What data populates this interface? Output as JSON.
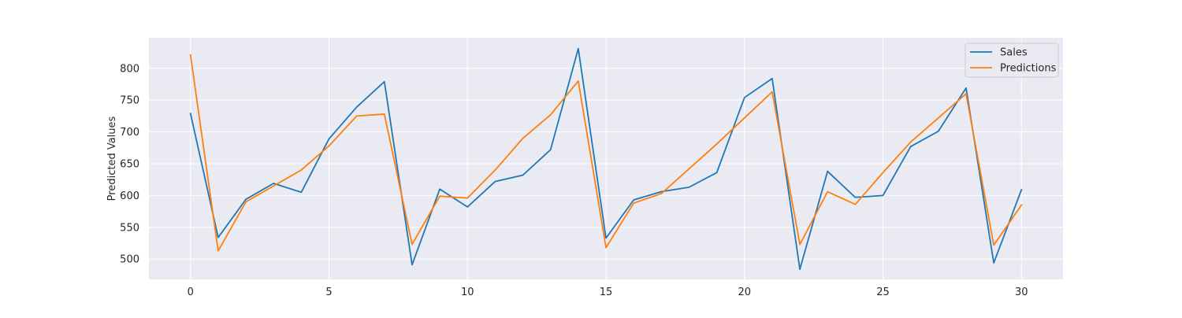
{
  "chart_data": {
    "type": "line",
    "title": "",
    "xlabel": "",
    "ylabel": "Predicted Values",
    "x": [
      0,
      1,
      2,
      3,
      4,
      5,
      6,
      7,
      8,
      9,
      10,
      11,
      12,
      13,
      14,
      15,
      16,
      17,
      18,
      19,
      20,
      21,
      22,
      23,
      24,
      25,
      26,
      27,
      28,
      29,
      30
    ],
    "series": [
      {
        "name": "Sales",
        "color": "#1f77b4",
        "values": [
          729,
          534,
          594,
          619,
          605,
          689,
          739,
          779,
          491,
          610,
          582,
          622,
          632,
          672,
          831,
          533,
          593,
          606,
          613,
          636,
          754,
          784,
          484,
          638,
          597,
          600,
          677,
          701,
          769,
          494,
          609
        ]
      },
      {
        "name": "Predictions",
        "color": "#ff7f0e",
        "values": [
          821,
          513,
          590,
          615,
          640,
          678,
          725,
          728,
          523,
          599,
          596,
          640,
          690,
          727,
          780,
          518,
          588,
          603,
          642,
          681,
          722,
          763,
          523,
          606,
          586,
          636,
          684,
          722,
          760,
          522,
          585
        ]
      }
    ],
    "xlim": [
      -1.5,
      31.5
    ],
    "ylim": [
      468,
      848
    ],
    "xticks": [
      0,
      5,
      10,
      15,
      20,
      25,
      30
    ],
    "yticks": [
      500,
      550,
      600,
      650,
      700,
      750,
      800
    ],
    "grid": true,
    "legend": "upper-right",
    "style": {
      "plot_background": "#eaeaf2",
      "grid_color": "#ffffff"
    }
  }
}
